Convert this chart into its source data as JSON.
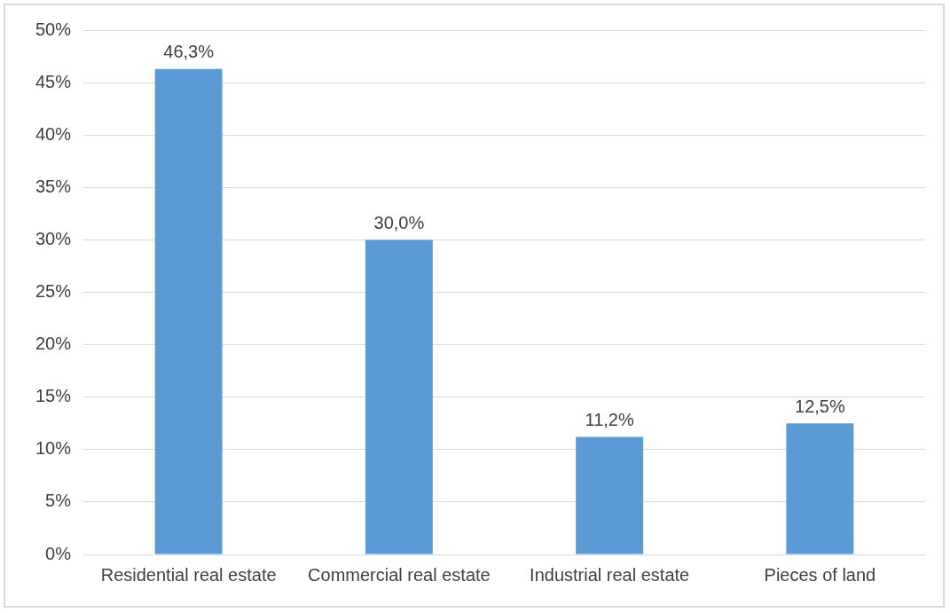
{
  "chart_data": {
    "type": "bar",
    "categories": [
      "Residential real estate",
      "Commercial real estate",
      "Industrial real estate",
      "Pieces of land"
    ],
    "values": [
      46.3,
      30.0,
      11.2,
      12.5
    ],
    "color": "#5b9bd5",
    "value_labels": [
      "46,3%",
      "30,0%",
      "11,2%",
      "12,5%"
    ],
    "ylim": [
      0,
      50
    ],
    "yticks": [
      {
        "value": 0,
        "label": "0%"
      },
      {
        "value": 5,
        "label": "5%"
      },
      {
        "value": 10,
        "label": "10%"
      },
      {
        "value": 15,
        "label": "15%"
      },
      {
        "value": 20,
        "label": "20%"
      },
      {
        "value": 25,
        "label": "25%"
      },
      {
        "value": 30,
        "label": "30%"
      },
      {
        "value": 35,
        "label": "35%"
      },
      {
        "value": 40,
        "label": "40%"
      },
      {
        "value": 45,
        "label": "45%"
      },
      {
        "value": 50,
        "label": "50%"
      }
    ],
    "grid": "y",
    "legend": false
  }
}
